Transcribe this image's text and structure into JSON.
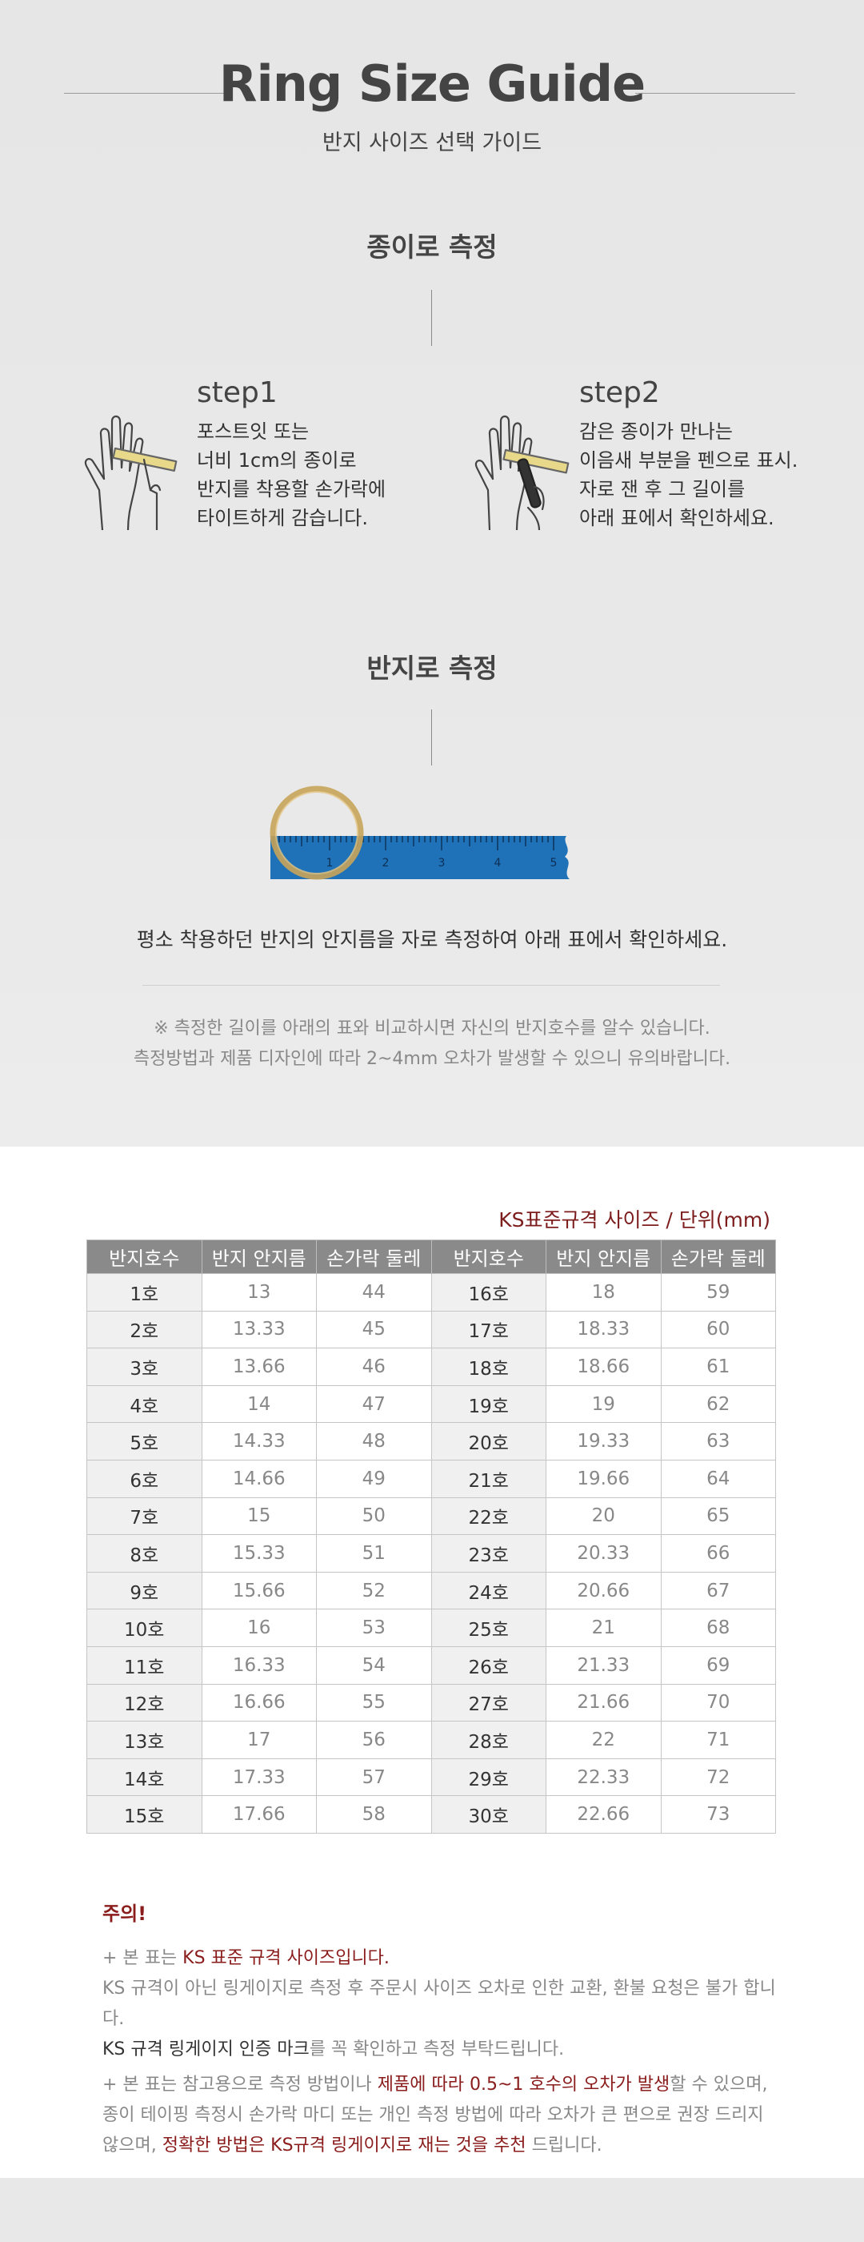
{
  "header": {
    "title": "Ring Size Guide",
    "subtitle": "반지 사이즈 선택 가이드"
  },
  "paper_section": {
    "heading": "종이로 측정",
    "step1": {
      "title": "step1",
      "lines": [
        "포스트잇 또는",
        "너비 1cm의 종이로",
        "반지를 착용할 손가락에",
        "타이트하게 감습니다."
      ],
      "icon": "hand-paper-wrap-icon"
    },
    "step2": {
      "title": "step2",
      "lines": [
        "감은 종이가 만나는",
        "이음새 부분을 펜으로 표시.",
        "자로 잰 후 그 길이를",
        "아래 표에서 확인하세요."
      ],
      "icon": "hand-pen-mark-icon"
    }
  },
  "ring_section": {
    "heading": "반지로 측정",
    "ruler_ticks": [
      "1",
      "2",
      "3",
      "4",
      "5"
    ],
    "caption": "평소 착용하던 반지의 안지름을 자로 측정하여 아래 표에서 확인하세요.",
    "notes": [
      "※ 측정한 길이를 아래의 표와 비교하시면 자신의 반지호수를 알수 있습니다.",
      "측정방법과 제품 디자인에 따라 2~4mm 오차가 발생할 수 있으니 유의바랍니다."
    ]
  },
  "table": {
    "unit_label": "KS표준규격 사이즈 / 단위(mm)",
    "headers": [
      "반지호수",
      "반지 안지름",
      "손가락 둘레",
      "반지호수",
      "반지 안지름",
      "손가락 둘레"
    ],
    "rows": [
      [
        "1호",
        "13",
        "44",
        "16호",
        "18",
        "59"
      ],
      [
        "2호",
        "13.33",
        "45",
        "17호",
        "18.33",
        "60"
      ],
      [
        "3호",
        "13.66",
        "46",
        "18호",
        "18.66",
        "61"
      ],
      [
        "4호",
        "14",
        "47",
        "19호",
        "19",
        "62"
      ],
      [
        "5호",
        "14.33",
        "48",
        "20호",
        "19.33",
        "63"
      ],
      [
        "6호",
        "14.66",
        "49",
        "21호",
        "19.66",
        "64"
      ],
      [
        "7호",
        "15",
        "50",
        "22호",
        "20",
        "65"
      ],
      [
        "8호",
        "15.33",
        "51",
        "23호",
        "20.33",
        "66"
      ],
      [
        "9호",
        "15.66",
        "52",
        "24호",
        "20.66",
        "67"
      ],
      [
        "10호",
        "16",
        "53",
        "25호",
        "21",
        "68"
      ],
      [
        "11호",
        "16.33",
        "54",
        "26호",
        "21.33",
        "69"
      ],
      [
        "12호",
        "16.66",
        "55",
        "27호",
        "21.66",
        "70"
      ],
      [
        "13호",
        "17",
        "56",
        "28호",
        "22",
        "71"
      ],
      [
        "14호",
        "17.33",
        "57",
        "29호",
        "22.33",
        "72"
      ],
      [
        "15호",
        "17.66",
        "58",
        "30호",
        "22.66",
        "73"
      ]
    ]
  },
  "notice": {
    "heading": "주의!",
    "p1_a": "+ 본 표는 ",
    "p1_b": "KS 표준 규격 사이즈입니다.",
    "p1_line2": "KS 규격이 아닌 링게이지로 측정 후 주문시 사이즈 오차로 인한 교환, 환불 요청은 불가 합니다.",
    "p1_line3_a": "KS 규격 링게이지 인증 마크",
    "p1_line3_b": "를 꼭 확인하고 측정 부탁드립니다.",
    "p2_a": "+ 본 표는 참고용으로 측정 방법이나 ",
    "p2_b": "제품에 따라 0.5~1 호수의 오차가 발생",
    "p2_c": "할 수 있으며,",
    "p2_line2": "종이 테이핑 측정시 손가락 마디 또는 개인 측정 방법에 따라 오차가 큰 편으로 권장 드리지",
    "p2_line3_a": "않으며, ",
    "p2_line3_b": "정확한 방법은 KS규격 링게이지로 재는 것을 추천",
    "p2_line3_c": " 드립니다."
  },
  "colors": {
    "accent_red": "#8a1c1c",
    "table_header": "#8a8a8a",
    "ruler_blue": "#1f72b8",
    "ring_gold": "#c8a45a"
  }
}
